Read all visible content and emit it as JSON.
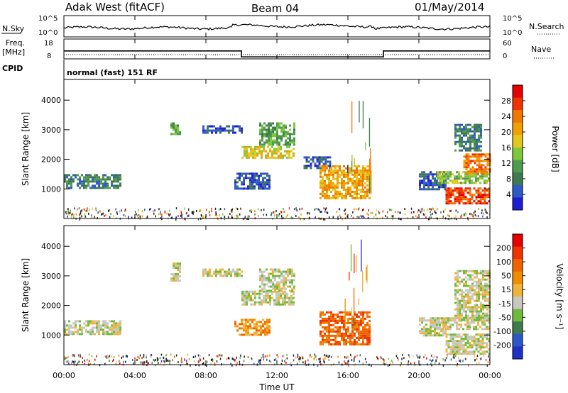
{
  "header": {
    "radar": "Adak West (fitACF)",
    "beam": "Beam 04",
    "date": "01/May/2014"
  },
  "strip_labels": {
    "nsky": "N.Sky",
    "nsky_ticks": [
      "10^5",
      "10^0"
    ],
    "nsearch": "N.Search",
    "nsearch_ticks": [
      "10^5",
      "10^0"
    ],
    "freq": "Freq.",
    "freq_unit": "[MHz]",
    "freq_ticks": [
      "18",
      "8"
    ],
    "nave": "Nave",
    "nave_ticks": [
      "60",
      "0"
    ],
    "cpid": "CPID",
    "cpid_value": "normal (fast) 151 RF"
  },
  "colors": {
    "power": [
      "#1e1ed2",
      "#2f58c9",
      "#3f7a4e",
      "#4f9b4f",
      "#7dc83c",
      "#e1c81e",
      "#f0a000",
      "#f07800",
      "#f03200",
      "#e60000"
    ],
    "velocity": [
      "#2030c8",
      "#2a58c8",
      "#3f7a4e",
      "#6fba3c",
      "#c8c8c0",
      "#f0b43c",
      "#f08c00",
      "#f06400",
      "#f03200",
      "#e60000"
    ],
    "noise_dark": "#202020",
    "freq_line": "#000000"
  },
  "chart_data": [
    {
      "type": "heatmap",
      "name": "power",
      "ylabel": "Slant Range [km]",
      "ylim": [
        0,
        4700
      ],
      "yticks": [
        "4000",
        "3000",
        "2000",
        "1000"
      ],
      "colorbar_label": "Power [dB]",
      "colorbar_ticks": [
        "28",
        "24",
        "20",
        "16",
        "12",
        "8",
        "4"
      ],
      "colorbar_range": [
        0,
        32
      ],
      "patches": [
        {
          "t0": 0.0,
          "t1": 3.2,
          "r0": 1000,
          "r1": 1500,
          "level": 2
        },
        {
          "t0": 6.0,
          "t1": 6.6,
          "r0": 2850,
          "r1": 3250,
          "level": 3
        },
        {
          "t0": 7.8,
          "t1": 10.0,
          "r0": 2900,
          "r1": 3150,
          "level": 1
        },
        {
          "t0": 9.6,
          "t1": 11.6,
          "r0": 1000,
          "r1": 1550,
          "level": 1
        },
        {
          "t0": 10.0,
          "t1": 13.0,
          "r0": 2050,
          "r1": 2450,
          "level": 5
        },
        {
          "t0": 11.0,
          "t1": 13.0,
          "r0": 2500,
          "r1": 3250,
          "level": 3
        },
        {
          "t0": 13.5,
          "t1": 15.0,
          "r0": 1700,
          "r1": 2100,
          "level": 1
        },
        {
          "t0": 14.4,
          "t1": 17.2,
          "r0": 650,
          "r1": 1800,
          "level": 6
        },
        {
          "t0": 20.0,
          "t1": 21.5,
          "r0": 1000,
          "r1": 1600,
          "level": 1
        },
        {
          "t0": 21.0,
          "t1": 24.0,
          "r0": 1200,
          "r1": 1600,
          "level": 4
        },
        {
          "t0": 21.5,
          "t1": 24.0,
          "r0": 500,
          "r1": 1050,
          "level": 8
        },
        {
          "t0": 22.5,
          "t1": 24.0,
          "r0": 1500,
          "r1": 2200,
          "level": 7
        },
        {
          "t0": 22.0,
          "t1": 23.5,
          "r0": 2300,
          "r1": 3200,
          "level": 2
        }
      ]
    },
    {
      "type": "heatmap",
      "name": "velocity",
      "ylabel": "Slant Range [km]",
      "ylim": [
        0,
        4700
      ],
      "yticks": [
        "4000",
        "3000",
        "2000",
        "1000"
      ],
      "colorbar_label": "Velocity [m s⁻¹]",
      "colorbar_ticks": [
        "200",
        "100",
        "50",
        "15",
        "-15",
        "-50",
        "-100",
        "-200"
      ],
      "colorbar_range": [
        -250,
        250
      ],
      "patches": [
        {
          "t0": 0.0,
          "t1": 3.2,
          "r0": 1000,
          "r1": 1500,
          "level": 4
        },
        {
          "t0": 6.0,
          "t1": 6.6,
          "r0": 2850,
          "r1": 3450,
          "level": 4
        },
        {
          "t0": 7.8,
          "t1": 10.0,
          "r0": 3000,
          "r1": 3250,
          "level": 4
        },
        {
          "t0": 9.6,
          "t1": 11.6,
          "r0": 1000,
          "r1": 1550,
          "level": 6
        },
        {
          "t0": 10.0,
          "t1": 13.0,
          "r0": 2050,
          "r1": 2500,
          "level": 4
        },
        {
          "t0": 11.0,
          "t1": 13.0,
          "r0": 2500,
          "r1": 3250,
          "level": 4
        },
        {
          "t0": 14.4,
          "t1": 17.2,
          "r0": 650,
          "r1": 1800,
          "level": 7
        },
        {
          "t0": 20.0,
          "t1": 21.5,
          "r0": 1000,
          "r1": 1600,
          "level": 4
        },
        {
          "t0": 21.0,
          "t1": 24.0,
          "r0": 1200,
          "r1": 1600,
          "level": 4
        },
        {
          "t0": 21.5,
          "t1": 24.0,
          "r0": 400,
          "r1": 1050,
          "level": 4
        },
        {
          "t0": 22.0,
          "t1": 24.0,
          "r0": 1500,
          "r1": 3200,
          "level": 4
        }
      ]
    }
  ],
  "time_axis": {
    "xlabel": "Time UT",
    "ticks": [
      "00:00",
      "04:00",
      "08:00",
      "12:00",
      "16:00",
      "20:00",
      "00:00"
    ],
    "range_hours": [
      0,
      24
    ]
  },
  "freq_series": {
    "segments": [
      {
        "t0": 0,
        "t1": 10,
        "mhz": 12.0
      },
      {
        "t0": 10,
        "t1": 18,
        "mhz": 9.0
      },
      {
        "t0": 18,
        "t1": 24,
        "mhz": 12.0
      }
    ]
  }
}
